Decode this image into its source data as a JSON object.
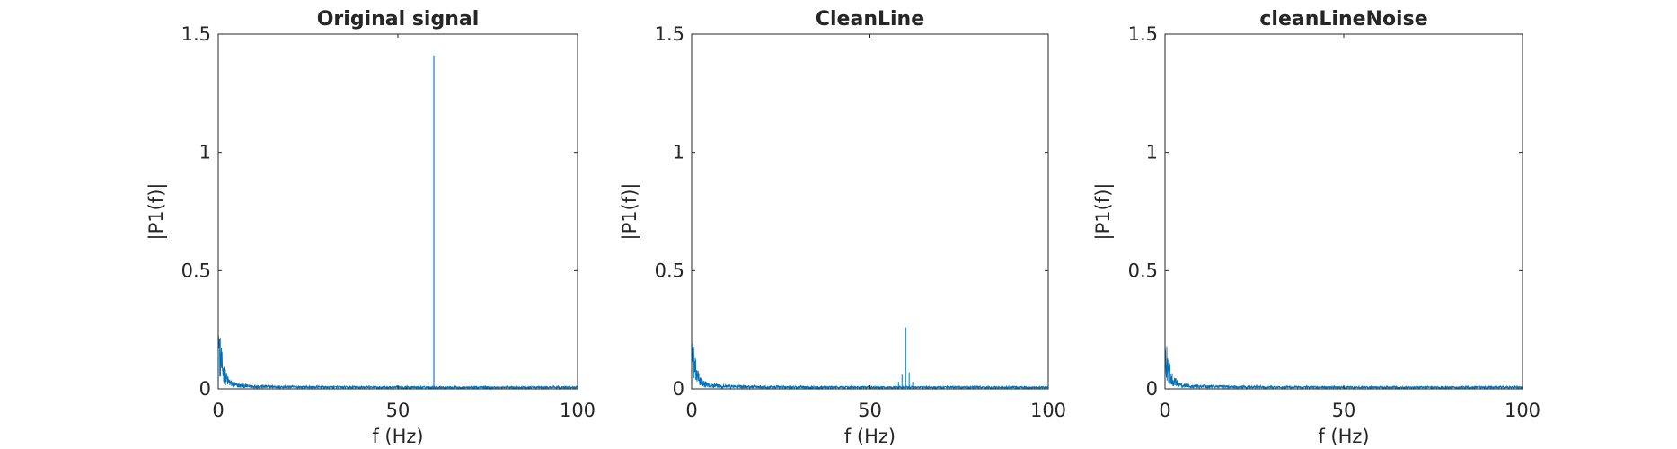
{
  "chart_data": [
    {
      "type": "line",
      "title": "Original signal",
      "xlabel": "f (Hz)",
      "ylabel": "|P1(f)|",
      "xlim": [
        0,
        100
      ],
      "ylim": [
        0,
        1.5
      ],
      "xticks": [
        "0",
        "50",
        "100"
      ],
      "yticks": [
        "0",
        "0.5",
        "1",
        "1.5"
      ],
      "grid": false,
      "series_color": "#0072BD",
      "features": {
        "noise_floor": 0.008,
        "low_freq_peak": 0.24,
        "line_peaks": [
          {
            "x": 60,
            "y": 1.41
          }
        ],
        "side_peaks": []
      }
    },
    {
      "type": "line",
      "title": "CleanLine",
      "xlabel": "f (Hz)",
      "ylabel": "|P1(f)|",
      "xlim": [
        0,
        100
      ],
      "ylim": [
        0,
        1.5
      ],
      "xticks": [
        "0",
        "50",
        "100"
      ],
      "yticks": [
        "0",
        "0.5",
        "1",
        "1.5"
      ],
      "grid": false,
      "series_color": "#0072BD",
      "features": {
        "noise_floor": 0.008,
        "low_freq_peak": 0.19,
        "line_peaks": [
          {
            "x": 60,
            "y": 0.26
          }
        ],
        "side_peaks": [
          {
            "x": 59,
            "y": 0.06
          },
          {
            "x": 61,
            "y": 0.07
          },
          {
            "x": 58,
            "y": 0.03
          },
          {
            "x": 62,
            "y": 0.03
          }
        ]
      }
    },
    {
      "type": "line",
      "title": "cleanLineNoise",
      "xlabel": "f (Hz)",
      "ylabel": "|P1(f)|",
      "xlim": [
        0,
        100
      ],
      "ylim": [
        0,
        1.5
      ],
      "xticks": [
        "0",
        "50",
        "100"
      ],
      "yticks": [
        "0",
        "0.5",
        "1",
        "1.5"
      ],
      "grid": false,
      "series_color": "#0072BD",
      "features": {
        "noise_floor": 0.008,
        "low_freq_peak": 0.19,
        "line_peaks": [],
        "side_peaks": []
      }
    }
  ]
}
